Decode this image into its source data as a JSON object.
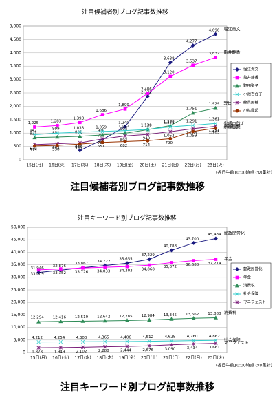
{
  "chart_data": [
    {
      "type": "line",
      "title": "注目候補者別ブログ記事数推移",
      "categories": [
        "15日(月)",
        "16日(火)",
        "17日(水)",
        "18日(木)",
        "19日(金)",
        "20日(土)",
        "21日(日)",
        "22日(月)",
        "23日(火)"
      ],
      "ylim": [
        0,
        5000
      ],
      "yticks": [
        0,
        500,
        {
          "value": 1000,
          "label": "1,000"
        },
        {
          "value": 1500,
          "label": "1,500"
        },
        {
          "value": 2000,
          "label": "2,000"
        },
        {
          "value": 2500,
          "label": "2,500"
        },
        {
          "value": 3000,
          "label": "3,000"
        },
        {
          "value": 3500,
          "label": "3,500"
        },
        {
          "value": 4000,
          "label": "4,000"
        },
        {
          "value": 4500,
          "label": "4,500"
        },
        {
          "value": 5000,
          "label": "5,000"
        }
      ],
      "grid": true,
      "legend": "right",
      "note": "(各日午前10:00時点での集計)",
      "caption": "注目候補者別ブログ記事数推移",
      "series": [
        {
          "name": "堀江貴文",
          "color": "#1a1a80",
          "marker": "diamond",
          "values": [
            null,
            null,
            347,
            753,
            1240,
            2372,
            3638,
            4277,
            4696
          ],
          "value_labels": [
            null,
            null,
            "347",
            "753",
            "1,240",
            "2,372",
            "3,638",
            "4,277",
            "4,696"
          ]
        },
        {
          "name": "亀井静香",
          "color": "#ff00ff",
          "marker": "square",
          "values": [
            1225,
            1283,
            1398,
            1686,
            1899,
            2486,
            3120,
            3537,
            3832
          ],
          "value_labels": [
            "1,225",
            "1,283",
            "1,398",
            "1,686",
            "1,899",
            "2,486",
            "3,120",
            "3,537",
            "3,832"
          ]
        },
        {
          "name": "野田聖子",
          "color": "#2e8b57",
          "marker": "triangle",
          "values": [
            831,
            851,
            881,
            930,
            993,
            1129,
            1278,
            1751,
            1929
          ],
          "value_labels": [
            "831",
            "851",
            "881",
            "930",
            "993",
            "1,129",
            "1,278",
            "1,751",
            "1,929"
          ]
        },
        {
          "name": "小池百合子",
          "color": "#33cccc",
          "marker": "x",
          "values": [
            942,
            999,
            1033,
            1059,
            1092,
            1134,
            1232,
            1291,
            1361
          ],
          "value_labels": [
            "942",
            "999",
            "1,033",
            "1,059",
            "1,092",
            "1,134",
            "1,232",
            "1,291",
            "1,361"
          ]
        },
        {
          "name": "綿貫民輔",
          "color": "#7a1f7a",
          "marker": "star",
          "values": [
            570,
            602,
            635,
            780,
            893,
            949,
            1052,
            1163,
            1251
          ],
          "value_labels": [
            "570",
            "602",
            "635",
            "780",
            "893",
            "949",
            "1,052",
            "1,163",
            "1,251"
          ]
        },
        {
          "name": "小林興起",
          "color": "#993300",
          "marker": "circle",
          "values": [
            519,
            538,
            590,
            651,
            682,
            714,
            790,
            1059,
            1183
          ],
          "value_labels": [
            "519",
            "538",
            "590",
            "651",
            "682",
            "714",
            "790",
            "1,059",
            "1,183"
          ]
        }
      ]
    },
    {
      "type": "line",
      "title": "注目キーワード別ブログ記事数推移",
      "categories": [
        "15日(月)",
        "16日(火)",
        "17日(水)",
        "18日(木)",
        "19日(金)",
        "20日(土)",
        "21日(日)",
        "22日(月)",
        "23日(火)"
      ],
      "ylim": [
        0,
        50000
      ],
      "yticks": [
        0,
        {
          "value": 5000,
          "label": "5,000"
        },
        {
          "value": 10000,
          "label": "10,000"
        },
        {
          "value": 15000,
          "label": "15,000"
        },
        {
          "value": 20000,
          "label": "20,000"
        },
        {
          "value": 25000,
          "label": "25,000"
        },
        {
          "value": 30000,
          "label": "30,000"
        },
        {
          "value": 35000,
          "label": "35,000"
        },
        {
          "value": 40000,
          "label": "40,000"
        },
        {
          "value": 45000,
          "label": "45,000"
        },
        {
          "value": 50000,
          "label": "50,000"
        }
      ],
      "grid": true,
      "legend": "right",
      "note": "(各日午前10:00時点での集計)",
      "caption": "注目キーワード別ブログ記事数推移",
      "series": [
        {
          "name": "郵政民営化",
          "color": "#1a1a80",
          "marker": "diamond",
          "values": [
            31946,
            32876,
            33867,
            34722,
            35655,
            37229,
            40788,
            43700,
            45484
          ],
          "value_labels": [
            "31,946",
            "32,876",
            "33,867",
            "34,722",
            "35,655",
            "37,229",
            "40,788",
            "43,700",
            "45,484"
          ]
        },
        {
          "name": "年金",
          "color": "#ff00ff",
          "marker": "square",
          "values": [
            33009,
            33352,
            33726,
            34033,
            34303,
            34868,
            35872,
            36680,
            37214
          ],
          "value_labels": [
            "33,009",
            "33,352",
            "33,726",
            "34,033",
            "34,303",
            "34,868",
            "35,872",
            "36,680",
            "37,214"
          ]
        },
        {
          "name": "消費税",
          "color": "#2e8b57",
          "marker": "triangle",
          "values": [
            12294,
            12416,
            12519,
            12642,
            12785,
            12984,
            13345,
            13662,
            13888
          ],
          "value_labels": [
            "12,294",
            "12,416",
            "12,519",
            "12,642",
            "12,785",
            "12,984",
            "13,345",
            "13,662",
            "13,888"
          ]
        },
        {
          "name": "社会保障",
          "color": "#33cccc",
          "marker": "x",
          "values": [
            4212,
            4254,
            4300,
            4365,
            4406,
            4512,
            4628,
            4760,
            4862
          ],
          "value_labels": [
            "4,212",
            "4,254",
            "4,300",
            "4,365",
            "4,406",
            "4,512",
            "4,628",
            "4,760",
            "4,862"
          ]
        },
        {
          "name": "マニフェスト",
          "color": "#7a1f7a",
          "marker": "star",
          "values": [
            1873,
            1949,
            2102,
            2288,
            2444,
            2676,
            3090,
            3434,
            3661
          ],
          "value_labels": [
            "1,873",
            "1,949",
            "2,102",
            "2,288",
            "2,444",
            "2,676",
            "3,090",
            "3,434",
            "3,661"
          ]
        }
      ]
    }
  ]
}
